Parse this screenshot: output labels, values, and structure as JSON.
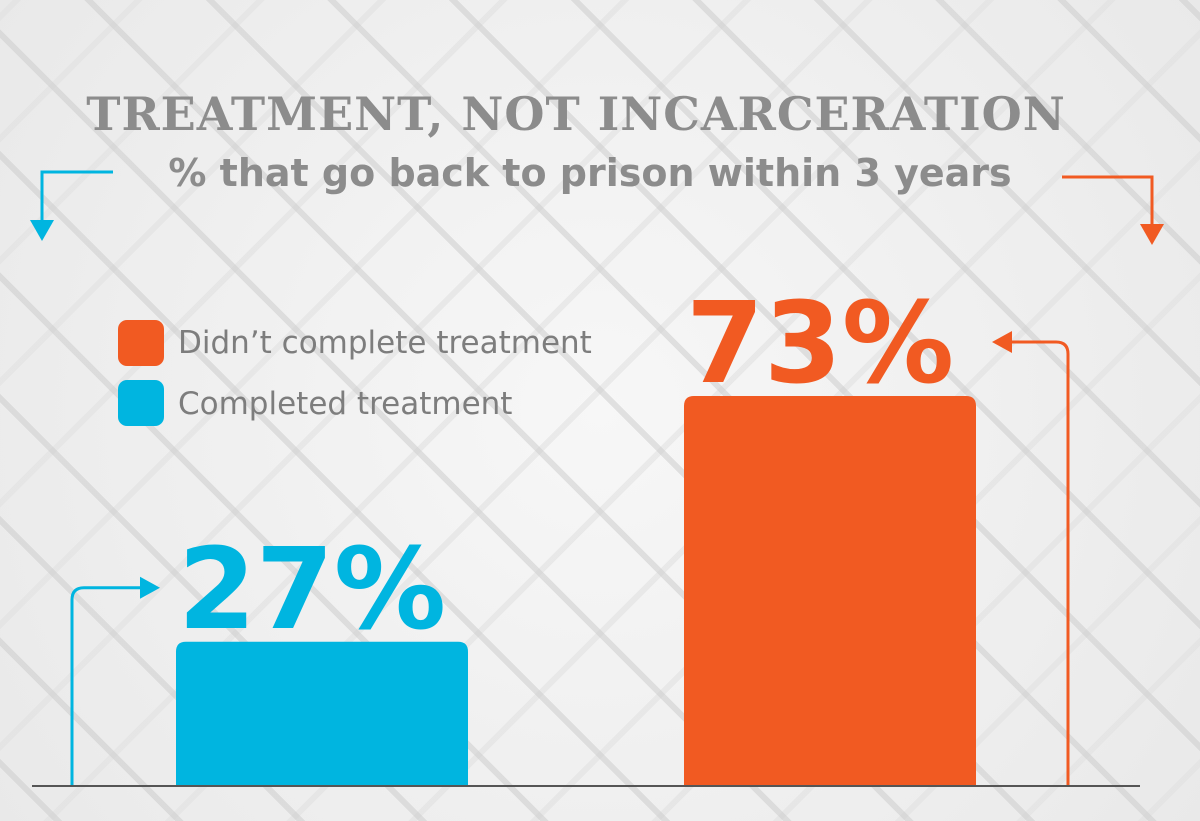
{
  "colors": {
    "completed": "#00b5e0",
    "not_completed": "#f15a22",
    "title": "#8c8c8c",
    "baseline": "#555555"
  },
  "chart_data": {
    "type": "bar",
    "title": "TREATMENT, NOT INCARCERATION",
    "subtitle": "% that go back to prison within 3 years",
    "categories": [
      "Completed treatment",
      "Didn’t complete treatment"
    ],
    "values": [
      27,
      73
    ],
    "data_labels": [
      "27%",
      "73%"
    ],
    "ylim": [
      0,
      100
    ],
    "grid": false,
    "legend": {
      "position": "top-left",
      "items": [
        {
          "label": "Didn’t complete treatment",
          "color": "#f15a22"
        },
        {
          "label": "Completed treatment",
          "color": "#00b5e0"
        }
      ]
    }
  }
}
